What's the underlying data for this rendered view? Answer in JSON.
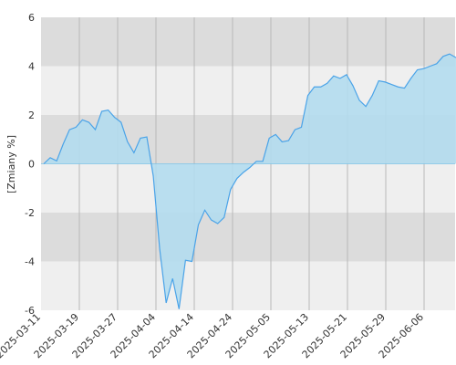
{
  "chart_data": {
    "type": "area",
    "title": "",
    "xlabel": "",
    "ylabel": "[Zmiany %]",
    "ylim": [
      -6,
      6
    ],
    "yticks": [
      -6,
      -4,
      -2,
      0,
      2,
      4,
      6
    ],
    "x_tick_labels": [
      "2025-03-11",
      "2025-03-19",
      "2025-03-27",
      "2025-04-04",
      "2025-04-14",
      "2025-04-24",
      "2025-05-05",
      "2025-05-13",
      "2025-05-21",
      "2025-05-29",
      "2025-06-06"
    ],
    "grid": true,
    "band_colors": [
      "#dcdcdc",
      "#efefef"
    ],
    "line_color": "#4aa3e8",
    "fill_color": "#b3dcee",
    "series": [
      {
        "values": [
          0.0,
          0.25,
          0.12,
          0.8,
          1.4,
          1.5,
          1.8,
          1.7,
          1.4,
          2.15,
          2.2,
          1.9,
          1.7,
          0.9,
          0.45,
          1.05,
          1.1,
          -0.5,
          -3.5,
          -5.7,
          -4.7,
          -5.95,
          -3.95,
          -4.0,
          -2.5,
          -1.9,
          -2.3,
          -2.45,
          -2.2,
          -1.05,
          -0.6,
          -0.35,
          -0.15,
          0.1,
          0.1,
          1.05,
          1.2,
          0.9,
          0.95,
          1.4,
          1.5,
          2.8,
          3.15,
          3.15,
          3.3,
          3.6,
          3.5,
          3.65,
          3.2,
          2.6,
          2.35,
          2.8,
          3.4,
          3.35,
          3.25,
          3.15,
          3.1,
          3.5,
          3.85,
          3.9,
          4.0,
          4.1,
          4.4,
          4.5,
          4.35
        ]
      }
    ]
  }
}
